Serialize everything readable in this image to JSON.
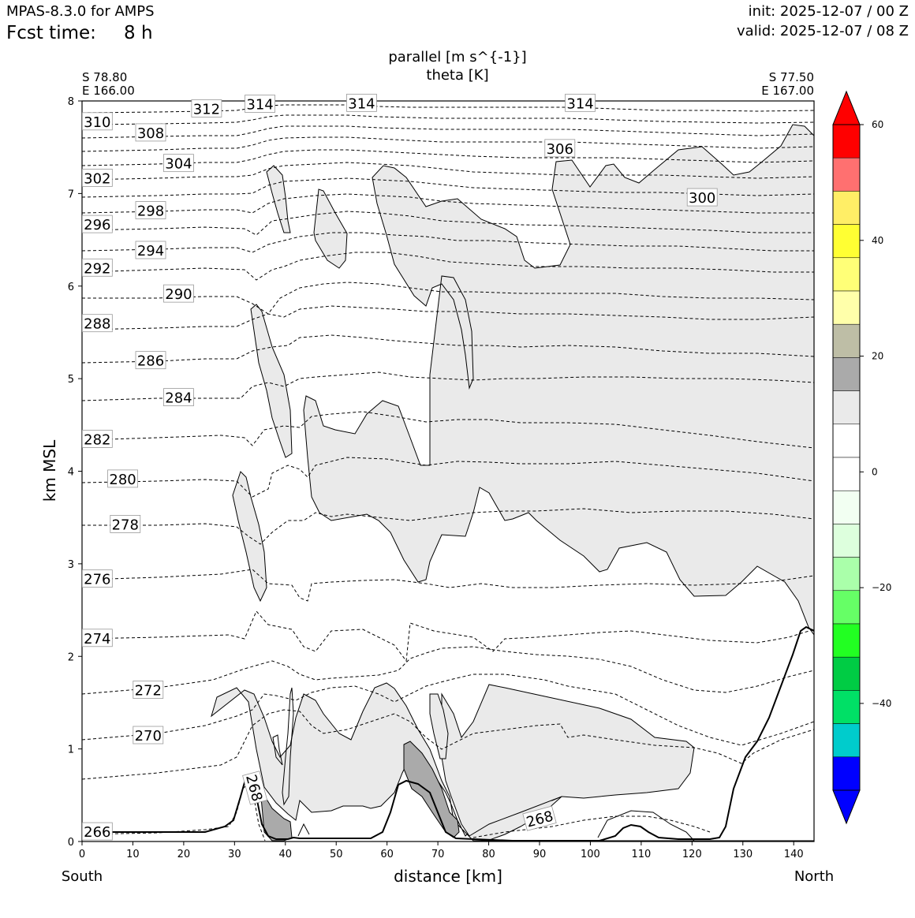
{
  "header": {
    "model": "MPAS-8.3.0 for AMPS",
    "fcst_label": "Fcst time:",
    "fcst_value": "8 h",
    "init": "init: 2025-12-07 / 00 Z",
    "valid": "valid: 2025-12-07 / 08 Z"
  },
  "chart_data": {
    "type": "cross-section",
    "title_line1": "parallel [m s^{-1}]",
    "title_line2": "theta [K]",
    "left_endpoint": {
      "lat": "S 78.80",
      "lon": "E 166.00"
    },
    "right_endpoint": {
      "lat": "S 77.50",
      "lon": "E 167.00"
    },
    "xlabel": "distance [km]",
    "ylabel": "km MSL",
    "x_end_left": "South",
    "x_end_right": "North",
    "xlim": [
      0,
      144
    ],
    "ylim": [
      0,
      8
    ],
    "xticks": [
      0,
      10,
      20,
      30,
      40,
      50,
      60,
      70,
      80,
      90,
      100,
      110,
      120,
      130,
      140
    ],
    "yticks": [
      0,
      1,
      2,
      3,
      4,
      5,
      6,
      7,
      8
    ],
    "theta_contour_labels": [
      {
        "text": "266",
        "x": 3,
        "y": 0.11
      },
      {
        "text": "268",
        "x": 34,
        "y": 0.58
      },
      {
        "text": "268",
        "x": 90,
        "y": 0.25
      },
      {
        "text": "270",
        "x": 13,
        "y": 1.15
      },
      {
        "text": "272",
        "x": 13,
        "y": 1.64
      },
      {
        "text": "274",
        "x": 3,
        "y": 2.2
      },
      {
        "text": "276",
        "x": 3,
        "y": 2.84
      },
      {
        "text": "278",
        "x": 8.5,
        "y": 3.43
      },
      {
        "text": "280",
        "x": 8,
        "y": 3.92
      },
      {
        "text": "282",
        "x": 3,
        "y": 4.35
      },
      {
        "text": "284",
        "x": 19,
        "y": 4.8
      },
      {
        "text": "286",
        "x": 13.5,
        "y": 5.2
      },
      {
        "text": "288",
        "x": 3,
        "y": 5.6
      },
      {
        "text": "290",
        "x": 19,
        "y": 5.92
      },
      {
        "text": "292",
        "x": 3,
        "y": 6.2
      },
      {
        "text": "294",
        "x": 13.5,
        "y": 6.39
      },
      {
        "text": "296",
        "x": 3,
        "y": 6.67
      },
      {
        "text": "298",
        "x": 13.5,
        "y": 6.82
      },
      {
        "text": "300",
        "x": 122,
        "y": 6.96
      },
      {
        "text": "302",
        "x": 3,
        "y": 7.17
      },
      {
        "text": "304",
        "x": 19,
        "y": 7.33
      },
      {
        "text": "306",
        "x": 94,
        "y": 7.49
      },
      {
        "text": "308",
        "x": 13.5,
        "y": 7.66
      },
      {
        "text": "310",
        "x": 3,
        "y": 7.78
      },
      {
        "text": "312",
        "x": 24.5,
        "y": 7.92
      },
      {
        "text": "314",
        "x": 35,
        "y": 7.97
      },
      {
        "text": "314",
        "x": 55,
        "y": 7.98
      },
      {
        "text": "314",
        "x": 98,
        "y": 7.98
      }
    ],
    "colorbar": {
      "ticks": [
        60,
        40,
        20,
        0,
        -20,
        -40
      ],
      "tick_labels": [
        "60",
        "40",
        "20",
        "0",
        "−20",
        "−40"
      ],
      "levels": [
        -55,
        -50,
        -45,
        -40,
        -35,
        -30,
        -25,
        -20,
        -15,
        -10,
        -5,
        0,
        5,
        10,
        15,
        20,
        25,
        30,
        35,
        40,
        45,
        50,
        55,
        60
      ],
      "colors": [
        "#0000ff",
        "#00cccc",
        "#00e066",
        "#00cc44",
        "#22ff22",
        "#66ff66",
        "#aaffaa",
        "#ddffdd",
        "#f2fff2",
        "#ffffff",
        "#ffffff",
        "#eaeaea",
        "#aaaaaa",
        "#bebea6",
        "#ffffaa",
        "#ffff77",
        "#ffff33",
        "#ffee66",
        "#ff7070",
        "#ff0000"
      ],
      "min_color": "#0000ff",
      "max_color": "#ff0000"
    },
    "colors": {
      "shade_light": "#eaeaea",
      "shade_dark": "#aaaaaa",
      "theta_line": "#000000"
    }
  }
}
